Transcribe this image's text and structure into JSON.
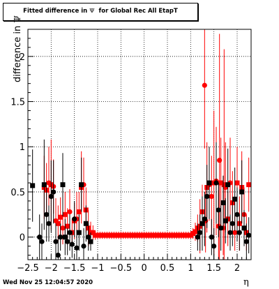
{
  "chart_data": {
    "type": "scatter",
    "title_prefix": "Fitted difference in ",
    "title_symbol": "Ψ",
    "title_suffix": "  for Global Rec All EtapT",
    "xlabel": "η",
    "ylabel_prefix": "difference in ",
    "ylabel_symbol": "Ψ",
    "xlim": [
      -2.5,
      2.3
    ],
    "ylim": [
      -0.25,
      2.3
    ],
    "x_ticks": [
      "−2.5",
      "−2",
      "−1.5",
      "−1",
      "−0.5",
      "0",
      "0.5",
      "1",
      "1.5",
      "2"
    ],
    "x_tick_values": [
      -2.5,
      -2,
      -1.5,
      -1,
      -0.5,
      0,
      0.5,
      1,
      1.5,
      2
    ],
    "y_ticks": [
      "0",
      "0.5",
      "1",
      "1.5",
      "2"
    ],
    "y_tick_values": [
      0,
      0.5,
      1,
      1.5,
      2
    ],
    "grid": true,
    "colors": {
      "red_series": "#ff0000",
      "black_series": "#000000",
      "frame": "#000000",
      "grid": "#000000"
    },
    "series": [
      {
        "color": "#ff0000",
        "marker": "mixed",
        "points": [
          {
            "x": -2.15,
            "y": 0.55,
            "e": 0.35,
            "m": "s"
          },
          {
            "x": -2.1,
            "y": 0.52,
            "e": 0.3,
            "m": "s"
          },
          {
            "x": -2.05,
            "y": 0.6,
            "e": 0.4,
            "m": "c"
          },
          {
            "x": -2.0,
            "y": 0.58,
            "e": 0.5,
            "m": "s"
          },
          {
            "x": -1.95,
            "y": 0.56,
            "e": 0.3,
            "m": "c"
          },
          {
            "x": -1.9,
            "y": 0.18,
            "e": 0.25,
            "m": "c"
          },
          {
            "x": -1.85,
            "y": 0.15,
            "e": 0.2,
            "m": "s"
          },
          {
            "x": -1.8,
            "y": 0.22,
            "e": 0.22,
            "m": "s"
          },
          {
            "x": -1.75,
            "y": 0.1,
            "e": 0.18,
            "m": "c"
          },
          {
            "x": -1.7,
            "y": 0.25,
            "e": 0.25,
            "m": "s"
          },
          {
            "x": -1.65,
            "y": 0.12,
            "e": 0.2,
            "m": "s"
          },
          {
            "x": -1.6,
            "y": 0.28,
            "e": 0.25,
            "m": "c"
          },
          {
            "x": -1.55,
            "y": 0.05,
            "e": 0.15,
            "m": "s"
          },
          {
            "x": -1.5,
            "y": 0.18,
            "e": 0.2,
            "m": "s"
          },
          {
            "x": -1.45,
            "y": 0.2,
            "e": 0.3,
            "m": "c"
          },
          {
            "x": -1.4,
            "y": 0.28,
            "e": 0.22,
            "m": "s"
          },
          {
            "x": -1.35,
            "y": 0.55,
            "e": 0.4,
            "m": "s"
          },
          {
            "x": -1.3,
            "y": 0.58,
            "e": 0.3,
            "m": "c"
          },
          {
            "x": -1.25,
            "y": 0.3,
            "e": 0.25,
            "m": "s"
          },
          {
            "x": -1.2,
            "y": 0.1,
            "e": 0.2,
            "m": "s"
          },
          {
            "x": -1.15,
            "y": 0.05,
            "e": 0.12,
            "m": "s"
          },
          {
            "x": -1.1,
            "y": 0.05,
            "e": 0.08,
            "m": "s"
          },
          {
            "x": -1.05,
            "y": 0.02,
            "e": 0.05,
            "m": "s"
          },
          {
            "x": -1.0,
            "y": 0.02,
            "e": 0.04,
            "m": "s"
          },
          {
            "x": -0.95,
            "y": 0.02,
            "e": 0.04,
            "m": "s"
          },
          {
            "x": -0.9,
            "y": 0.02,
            "e": 0.04,
            "m": "s"
          },
          {
            "x": -0.85,
            "y": 0.02,
            "e": 0.04,
            "m": "s"
          },
          {
            "x": -0.8,
            "y": 0.02,
            "e": 0.04,
            "m": "s"
          },
          {
            "x": -0.75,
            "y": 0.02,
            "e": 0.04,
            "m": "s"
          },
          {
            "x": -0.7,
            "y": 0.02,
            "e": 0.04,
            "m": "s"
          },
          {
            "x": -0.65,
            "y": 0.02,
            "e": 0.04,
            "m": "s"
          },
          {
            "x": -0.6,
            "y": 0.02,
            "e": 0.04,
            "m": "s"
          },
          {
            "x": -0.55,
            "y": 0.02,
            "e": 0.04,
            "m": "s"
          },
          {
            "x": -0.5,
            "y": 0.02,
            "e": 0.04,
            "m": "s"
          },
          {
            "x": -0.45,
            "y": 0.02,
            "e": 0.04,
            "m": "s"
          },
          {
            "x": -0.4,
            "y": 0.02,
            "e": 0.04,
            "m": "s"
          },
          {
            "x": -0.35,
            "y": 0.02,
            "e": 0.04,
            "m": "s"
          },
          {
            "x": -0.3,
            "y": 0.02,
            "e": 0.04,
            "m": "s"
          },
          {
            "x": -0.25,
            "y": 0.02,
            "e": 0.04,
            "m": "s"
          },
          {
            "x": -0.2,
            "y": 0.02,
            "e": 0.04,
            "m": "s"
          },
          {
            "x": -0.15,
            "y": 0.02,
            "e": 0.04,
            "m": "s"
          },
          {
            "x": -0.1,
            "y": 0.02,
            "e": 0.04,
            "m": "s"
          },
          {
            "x": -0.05,
            "y": 0.02,
            "e": 0.04,
            "m": "s"
          },
          {
            "x": 0.0,
            "y": 0.02,
            "e": 0.04,
            "m": "s"
          },
          {
            "x": 0.05,
            "y": 0.02,
            "e": 0.04,
            "m": "s"
          },
          {
            "x": 0.1,
            "y": 0.02,
            "e": 0.04,
            "m": "s"
          },
          {
            "x": 0.15,
            "y": 0.02,
            "e": 0.04,
            "m": "s"
          },
          {
            "x": 0.2,
            "y": 0.02,
            "e": 0.04,
            "m": "s"
          },
          {
            "x": 0.25,
            "y": 0.02,
            "e": 0.04,
            "m": "s"
          },
          {
            "x": 0.3,
            "y": 0.02,
            "e": 0.04,
            "m": "s"
          },
          {
            "x": 0.35,
            "y": 0.02,
            "e": 0.04,
            "m": "s"
          },
          {
            "x": 0.4,
            "y": 0.02,
            "e": 0.04,
            "m": "s"
          },
          {
            "x": 0.45,
            "y": 0.02,
            "e": 0.04,
            "m": "s"
          },
          {
            "x": 0.5,
            "y": 0.02,
            "e": 0.04,
            "m": "s"
          },
          {
            "x": 0.55,
            "y": 0.02,
            "e": 0.04,
            "m": "s"
          },
          {
            "x": 0.6,
            "y": 0.02,
            "e": 0.04,
            "m": "s"
          },
          {
            "x": 0.65,
            "y": 0.02,
            "e": 0.04,
            "m": "s"
          },
          {
            "x": 0.7,
            "y": 0.02,
            "e": 0.04,
            "m": "s"
          },
          {
            "x": 0.75,
            "y": 0.02,
            "e": 0.04,
            "m": "s"
          },
          {
            "x": 0.8,
            "y": 0.02,
            "e": 0.04,
            "m": "s"
          },
          {
            "x": 0.85,
            "y": 0.02,
            "e": 0.04,
            "m": "s"
          },
          {
            "x": 0.9,
            "y": 0.02,
            "e": 0.04,
            "m": "s"
          },
          {
            "x": 0.95,
            "y": 0.02,
            "e": 0.04,
            "m": "s"
          },
          {
            "x": 1.0,
            "y": 0.02,
            "e": 0.04,
            "m": "s"
          },
          {
            "x": 1.05,
            "y": 0.04,
            "e": 0.06,
            "m": "s"
          },
          {
            "x": 1.1,
            "y": 0.06,
            "e": 0.1,
            "m": "s"
          },
          {
            "x": 1.15,
            "y": 0.1,
            "e": 0.15,
            "m": "s"
          },
          {
            "x": 1.2,
            "y": 0.12,
            "e": 0.3,
            "m": "s"
          },
          {
            "x": 1.25,
            "y": 0.28,
            "e": 0.3,
            "m": "s"
          },
          {
            "x": 1.3,
            "y": 1.68,
            "e": 0.7,
            "m": "c"
          },
          {
            "x": 1.32,
            "y": 0.18,
            "e": 0.35,
            "m": "c"
          },
          {
            "x": 1.35,
            "y": 0.55,
            "e": 0.5,
            "m": "s"
          },
          {
            "x": 1.4,
            "y": 0.58,
            "e": 0.4,
            "m": "c"
          },
          {
            "x": 1.45,
            "y": 0.45,
            "e": 0.45,
            "m": "c"
          },
          {
            "x": 1.5,
            "y": 0.6,
            "e": 0.8,
            "m": "s"
          },
          {
            "x": 1.55,
            "y": 0.62,
            "e": 0.6,
            "m": "c"
          },
          {
            "x": 1.6,
            "y": 0.12,
            "e": 0.4,
            "m": "c"
          },
          {
            "x": 1.62,
            "y": 0.85,
            "e": 1.4,
            "m": "c"
          },
          {
            "x": 1.65,
            "y": 0.6,
            "e": 0.5,
            "m": "s"
          },
          {
            "x": 1.7,
            "y": 0.1,
            "e": 0.3,
            "m": "c"
          },
          {
            "x": 1.72,
            "y": 0.58,
            "e": 1.5,
            "m": "s"
          },
          {
            "x": 1.75,
            "y": 0.55,
            "e": 0.5,
            "m": "c"
          },
          {
            "x": 1.8,
            "y": 0.2,
            "e": 0.3,
            "m": "s"
          },
          {
            "x": 1.85,
            "y": 0.6,
            "e": 0.5,
            "m": "c"
          },
          {
            "x": 1.9,
            "y": 0.38,
            "e": 0.35,
            "m": "s"
          },
          {
            "x": 1.95,
            "y": 0.05,
            "e": 0.2,
            "m": "c"
          },
          {
            "x": 2.0,
            "y": 0.6,
            "e": 0.4,
            "m": "s"
          },
          {
            "x": 2.05,
            "y": 0.15,
            "e": 0.3,
            "m": "s"
          },
          {
            "x": 2.1,
            "y": 0.55,
            "e": 0.4,
            "m": "s"
          },
          {
            "x": 2.15,
            "y": 0.25,
            "e": 0.3,
            "m": "c"
          },
          {
            "x": 2.2,
            "y": 0.05,
            "e": 0.2,
            "m": "s"
          },
          {
            "x": 2.25,
            "y": 0.58,
            "e": 0.3,
            "m": "s"
          }
        ]
      },
      {
        "color": "#000000",
        "marker": "mixed",
        "points": [
          {
            "x": -2.4,
            "y": 0.57,
            "e": 0.4,
            "m": "s"
          },
          {
            "x": -2.25,
            "y": 0.0,
            "e": 0.25,
            "m": "c"
          },
          {
            "x": -2.2,
            "y": -0.05,
            "e": 0.2,
            "m": "c"
          },
          {
            "x": -2.15,
            "y": 0.58,
            "e": 0.5,
            "m": "s"
          },
          {
            "x": -2.1,
            "y": 0.25,
            "e": 0.3,
            "m": "c"
          },
          {
            "x": -2.05,
            "y": 0.15,
            "e": 0.2,
            "m": "c"
          },
          {
            "x": -2.0,
            "y": 0.45,
            "e": 0.4,
            "m": "c"
          },
          {
            "x": -1.95,
            "y": 0.5,
            "e": 0.35,
            "m": "c"
          },
          {
            "x": -1.9,
            "y": -0.05,
            "e": 0.2,
            "m": "c"
          },
          {
            "x": -1.85,
            "y": -0.2,
            "e": 0.2,
            "m": "c"
          },
          {
            "x": -1.8,
            "y": 0.0,
            "e": 0.15,
            "m": "c"
          },
          {
            "x": -1.75,
            "y": 0.58,
            "e": 0.35,
            "m": "s"
          },
          {
            "x": -1.7,
            "y": 0.0,
            "e": 0.2,
            "m": "s"
          },
          {
            "x": -1.65,
            "y": -0.05,
            "e": 0.15,
            "m": "c"
          },
          {
            "x": -1.6,
            "y": 0.05,
            "e": 0.2,
            "m": "c"
          },
          {
            "x": -1.55,
            "y": -0.08,
            "e": 0.15,
            "m": "c"
          },
          {
            "x": -1.5,
            "y": 0.2,
            "e": 0.2,
            "m": "c"
          },
          {
            "x": -1.45,
            "y": -0.12,
            "e": 0.2,
            "m": "c"
          },
          {
            "x": -1.4,
            "y": 0.05,
            "e": 0.2,
            "m": "s"
          },
          {
            "x": -1.35,
            "y": 0.58,
            "e": 0.3,
            "m": "s"
          },
          {
            "x": -1.3,
            "y": -0.1,
            "e": 0.2,
            "m": "c"
          },
          {
            "x": -1.25,
            "y": 0.15,
            "e": 0.2,
            "m": "s"
          },
          {
            "x": -1.2,
            "y": 0.0,
            "e": 0.15,
            "m": "c"
          },
          {
            "x": -1.15,
            "y": -0.05,
            "e": 0.1,
            "m": "s"
          },
          {
            "x": 1.15,
            "y": 0.0,
            "e": 0.15,
            "m": "c"
          },
          {
            "x": 1.2,
            "y": 0.05,
            "e": 0.2,
            "m": "c"
          },
          {
            "x": 1.25,
            "y": 0.15,
            "e": 0.3,
            "m": "s"
          },
          {
            "x": 1.3,
            "y": 0.2,
            "e": 0.3,
            "m": "c"
          },
          {
            "x": 1.35,
            "y": 0.45,
            "e": 0.35,
            "m": "c"
          },
          {
            "x": 1.4,
            "y": 0.6,
            "e": 0.4,
            "m": "s"
          },
          {
            "x": 1.45,
            "y": 0.0,
            "e": 0.2,
            "m": "c"
          },
          {
            "x": 1.5,
            "y": -0.1,
            "e": 0.2,
            "m": "c"
          },
          {
            "x": 1.55,
            "y": 0.6,
            "e": 0.45,
            "m": "c"
          },
          {
            "x": 1.6,
            "y": 0.3,
            "e": 0.3,
            "m": "c"
          },
          {
            "x": 1.65,
            "y": 0.1,
            "e": 0.25,
            "m": "c"
          },
          {
            "x": 1.7,
            "y": 0.38,
            "e": 0.3,
            "m": "s"
          },
          {
            "x": 1.75,
            "y": 0.18,
            "e": 0.25,
            "m": "s"
          },
          {
            "x": 1.8,
            "y": 0.58,
            "e": 0.4,
            "m": "s"
          },
          {
            "x": 1.85,
            "y": 0.05,
            "e": 0.2,
            "m": "c"
          },
          {
            "x": 1.9,
            "y": 0.15,
            "e": 0.25,
            "m": "c"
          },
          {
            "x": 1.95,
            "y": 0.42,
            "e": 0.35,
            "m": "s"
          },
          {
            "x": 2.0,
            "y": 0.25,
            "e": 0.3,
            "m": "c"
          },
          {
            "x": 2.05,
            "y": 0.05,
            "e": 0.2,
            "m": "c"
          },
          {
            "x": 2.1,
            "y": 0.5,
            "e": 0.35,
            "m": "s"
          },
          {
            "x": 2.15,
            "y": 0.1,
            "e": 0.2,
            "m": "s"
          },
          {
            "x": 2.2,
            "y": -0.05,
            "e": 0.2,
            "m": "c"
          },
          {
            "x": 2.25,
            "y": 0.02,
            "e": 0.2,
            "m": "c"
          }
        ]
      }
    ]
  },
  "footer": {
    "timestamp": "Wed Nov 25 12:04:57 2020"
  }
}
